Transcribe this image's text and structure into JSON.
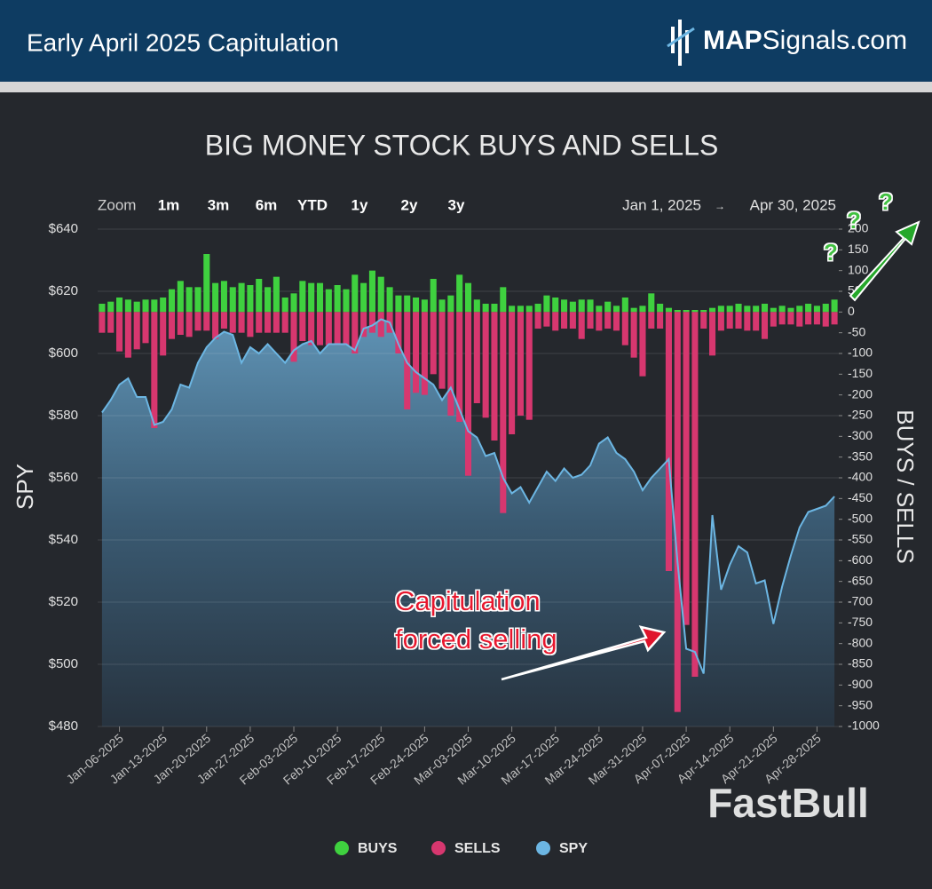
{
  "header": {
    "title": "Early April 2025 Capitulation",
    "logo": {
      "bold": "MAP",
      "rest": "Signals.com"
    }
  },
  "zoom": {
    "label": "Zoom",
    "buttons": [
      "1m",
      "3m",
      "6m",
      "YTD",
      "1y",
      "2y",
      "3y"
    ],
    "from": "Jan 1, 2025",
    "arrow": "→",
    "to": "Apr 30, 2025"
  },
  "chart_data": {
    "type": "bar",
    "title": "BIG MONEY STOCK BUYS AND SELLS",
    "y_label": "SPY",
    "y2_label": "BUYS / SELLS",
    "categories": [
      null,
      null,
      "Jan-06-2025",
      null,
      null,
      null,
      null,
      "Jan-13-2025",
      null,
      null,
      null,
      null,
      "Jan-20-2025",
      null,
      null,
      null,
      null,
      "Jan-27-2025",
      null,
      null,
      null,
      null,
      "Feb-03-2025",
      null,
      null,
      null,
      null,
      "Feb-10-2025",
      null,
      null,
      null,
      null,
      "Feb-17-2025",
      null,
      null,
      null,
      null,
      "Feb-24-2025",
      null,
      null,
      null,
      null,
      "Mar-03-2025",
      null,
      null,
      null,
      null,
      "Mar-10-2025",
      null,
      null,
      null,
      null,
      "Mar-17-2025",
      null,
      null,
      null,
      null,
      "Mar-24-2025",
      null,
      null,
      null,
      null,
      "Mar-31-2025",
      null,
      null,
      null,
      null,
      "Apr-07-2025",
      null,
      null,
      null,
      null,
      "Apr-14-2025",
      null,
      null,
      null,
      null,
      "Apr-21-2025",
      null,
      null,
      null,
      null,
      "Apr-28-2025",
      null,
      null
    ],
    "series": [
      {
        "name": "BUYS",
        "type": "bar",
        "axis": "y2",
        "color": "#3fd13f",
        "values": [
          20,
          25,
          35,
          30,
          25,
          30,
          30,
          35,
          55,
          75,
          60,
          60,
          140,
          70,
          75,
          60,
          70,
          65,
          80,
          60,
          85,
          35,
          45,
          75,
          70,
          70,
          55,
          65,
          55,
          90,
          70,
          100,
          85,
          60,
          40,
          40,
          35,
          30,
          80,
          30,
          40,
          90,
          70,
          30,
          20,
          20,
          60,
          15,
          15,
          15,
          20,
          40,
          35,
          30,
          25,
          30,
          30,
          15,
          25,
          15,
          35,
          10,
          15,
          45,
          20,
          10,
          5,
          5,
          5,
          5,
          10,
          15,
          15,
          20,
          15,
          15,
          20,
          10,
          15,
          10,
          15,
          20,
          15,
          20,
          30
        ]
      },
      {
        "name": "SELLS",
        "type": "bar",
        "axis": "y2",
        "color": "#d7376f",
        "values": [
          -50,
          -50,
          -95,
          -110,
          -90,
          -75,
          -280,
          -105,
          -65,
          -55,
          -60,
          -45,
          -45,
          -65,
          -40,
          -50,
          -50,
          -60,
          -50,
          -50,
          -50,
          -50,
          -120,
          -70,
          -80,
          -80,
          -80,
          -80,
          -80,
          -100,
          -60,
          -50,
          -60,
          -50,
          -100,
          -235,
          -195,
          -200,
          -150,
          -185,
          -250,
          -265,
          -395,
          -220,
          -255,
          -310,
          -485,
          -295,
          -250,
          -260,
          -40,
          -35,
          -45,
          -40,
          -40,
          -65,
          -40,
          -45,
          -40,
          -45,
          -80,
          -110,
          -155,
          -40,
          -40,
          -625,
          -965,
          -755,
          -880,
          -40,
          -105,
          -45,
          -40,
          -40,
          -45,
          -45,
          -65,
          -35,
          -30,
          -30,
          -35,
          -30,
          -30,
          -35,
          -30
        ]
      },
      {
        "name": "SPY",
        "type": "line",
        "axis": "y",
        "color": "#6cb6e3",
        "values": [
          581,
          585,
          590,
          592,
          586,
          586,
          577,
          578,
          582,
          590,
          589,
          597,
          602,
          605,
          607,
          606,
          597,
          602,
          600,
          603,
          600,
          597,
          601,
          603,
          604,
          600,
          603,
          603,
          603,
          601,
          608,
          609,
          611,
          610,
          603,
          597,
          594,
          592,
          590,
          585,
          589,
          582,
          575,
          573,
          567,
          568,
          560,
          555,
          557,
          552,
          557,
          562,
          559,
          563,
          560,
          561,
          564,
          571,
          573,
          568,
          566,
          562,
          556,
          560,
          563,
          566,
          533,
          505,
          504,
          497,
          548,
          524,
          532,
          538,
          536,
          526,
          527,
          513,
          525,
          535,
          544,
          549,
          550,
          551,
          554
        ]
      }
    ],
    "ylim": [
      480,
      640
    ],
    "yticks": [
      {
        "value": 480,
        "label": "$480"
      },
      {
        "value": 500,
        "label": "$500"
      },
      {
        "value": 520,
        "label": "$520"
      },
      {
        "value": 540,
        "label": "$540"
      },
      {
        "value": 560,
        "label": "$560"
      },
      {
        "value": 580,
        "label": "$580"
      },
      {
        "value": 600,
        "label": "$600"
      },
      {
        "value": 620,
        "label": "$620"
      },
      {
        "value": 640,
        "label": "$640"
      }
    ],
    "y2lim": [
      -1000,
      200
    ],
    "y2ticks": [
      200,
      150,
      100,
      50,
      0,
      -50,
      -100,
      -150,
      -200,
      -250,
      -300,
      -350,
      -400,
      -450,
      -500,
      -550,
      -600,
      -650,
      -700,
      -750,
      -800,
      -850,
      -900,
      -950,
      -1000
    ],
    "grid": true,
    "legend": "bottom",
    "annotation": [
      "Capitulation",
      "forced selling"
    ],
    "question_marks": [
      "?",
      "?",
      "?"
    ],
    "watermark": "FastBull"
  }
}
